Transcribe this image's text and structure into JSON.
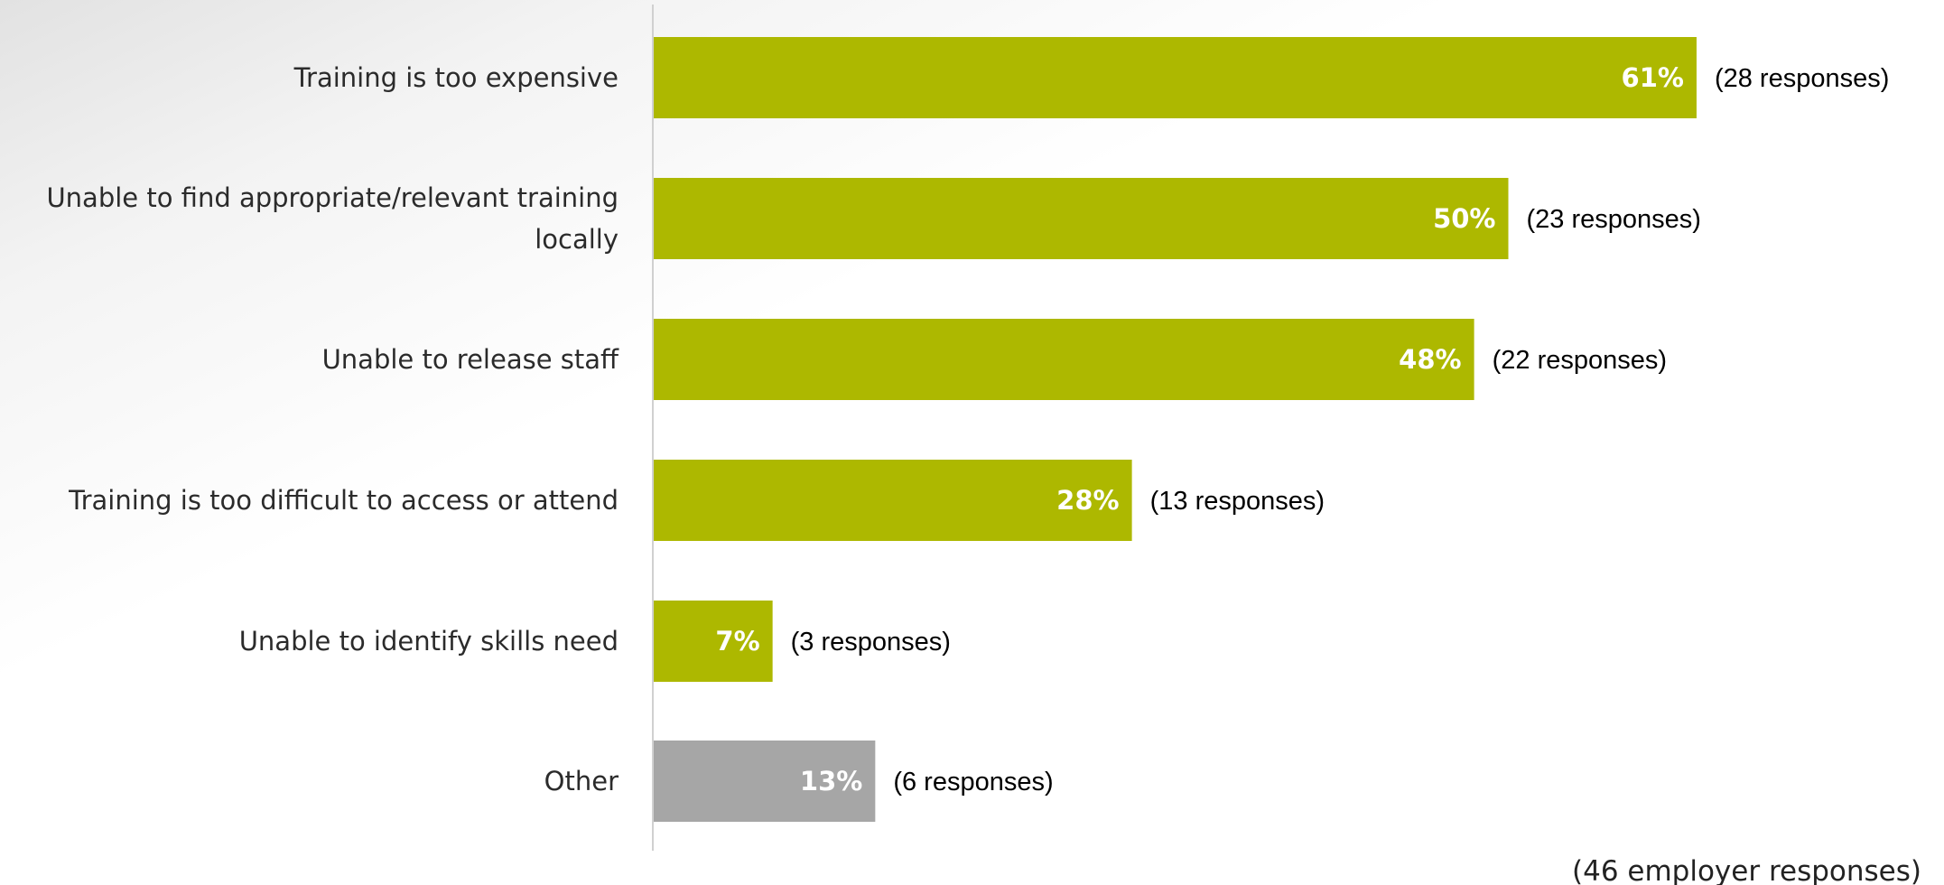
{
  "chart_data": {
    "type": "bar",
    "orientation": "horizontal",
    "categories": [
      "Training is too expensive",
      "Unable to find appropriate/relevant training locally",
      "Unable to release staff",
      "Training is too difficult to access or attend",
      "Unable to identify skills need",
      "Other"
    ],
    "category_lines": [
      [
        "Training is too expensive"
      ],
      [
        "Unable to find appropriate/relevant training",
        "locally"
      ],
      [
        "Unable to release staff"
      ],
      [
        "Training is too difficult to access or attend"
      ],
      [
        "Unable to identify skills need"
      ],
      [
        "Other"
      ]
    ],
    "values": [
      61,
      50,
      48,
      28,
      7,
      13
    ],
    "value_labels": [
      "61%",
      "50%",
      "48%",
      "28%",
      "7%",
      "13%"
    ],
    "response_labels": [
      "(28 responses)",
      "(23 responses)",
      "(22 responses)",
      "(13 responses)",
      "(3 responses)",
      "(6 responses)"
    ],
    "bar_colors": [
      "#adb800",
      "#adb800",
      "#adb800",
      "#adb800",
      "#adb800",
      "#a6a6a6"
    ],
    "xlim": [
      0,
      100
    ],
    "grid": false,
    "legend": "none",
    "footnote": "(46 employer responses)"
  },
  "colors": {
    "primary": "#adb800",
    "other": "#a6a6a6",
    "axis": "#d0d0d0"
  }
}
